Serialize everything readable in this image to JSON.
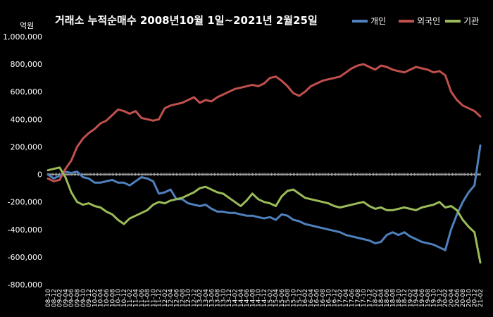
{
  "chart_data": {
    "type": "line",
    "title": "거래소 누적순매수 2008년10월 1일~2021년 2월25일",
    "ylabel": "억원",
    "ylim": [
      -800000,
      1000000
    ],
    "yticks": [
      "1,000,000",
      "800,000",
      "600,000",
      "400,000",
      "200,000",
      "0",
      "-200,000",
      "-400,000",
      "-600,000",
      "-800,000"
    ],
    "xticks": [
      "08-10",
      "08-12",
      "09-02",
      "09-04",
      "09-06",
      "09-08",
      "09-10",
      "09-12",
      "10-02",
      "10-04",
      "10-06",
      "10-08",
      "10-10",
      "10-12",
      "11-02",
      "11-04",
      "11-06",
      "11-08",
      "11-10",
      "11-12",
      "12-02",
      "12-04",
      "12-06",
      "12-08",
      "12-10",
      "12-12",
      "13-02",
      "13-04",
      "13-06",
      "13-08",
      "13-10",
      "13-12",
      "14-02",
      "14-04",
      "14-06",
      "14-08",
      "14-10",
      "14-12",
      "15-02",
      "15-04",
      "15-06",
      "15-08",
      "15-10",
      "15-12",
      "16-02",
      "16-04",
      "16-06",
      "16-08",
      "16-10",
      "16-12",
      "17-02",
      "17-04",
      "17-06",
      "17-08",
      "17-10",
      "17-12",
      "18-02",
      "18-04",
      "18-06",
      "18-08",
      "18-10",
      "18-12",
      "19-02",
      "19-04",
      "19-06",
      "19-08",
      "19-10",
      "19-12",
      "20-02",
      "20-04",
      "20-06",
      "20-08",
      "20-10",
      "20-12",
      "21-02"
    ],
    "legend_position": "top-right",
    "grid": false,
    "series": [
      {
        "name": "개인",
        "color": "#4f81bd",
        "values": [
          0,
          -30000,
          -10000,
          20000,
          10000,
          20000,
          -20000,
          -30000,
          -60000,
          -60000,
          -50000,
          -40000,
          -60000,
          -60000,
          -80000,
          -50000,
          -20000,
          -30000,
          -50000,
          -140000,
          -130000,
          -110000,
          -180000,
          -180000,
          -210000,
          -220000,
          -230000,
          -220000,
          -250000,
          -270000,
          -270000,
          -280000,
          -280000,
          -290000,
          -300000,
          -300000,
          -310000,
          -320000,
          -310000,
          -330000,
          -290000,
          -300000,
          -330000,
          -340000,
          -360000,
          -370000,
          -380000,
          -390000,
          -400000,
          -410000,
          -420000,
          -440000,
          -450000,
          -460000,
          -470000,
          -480000,
          -500000,
          -490000,
          -440000,
          -420000,
          -440000,
          -420000,
          -450000,
          -470000,
          -490000,
          -500000,
          -510000,
          -530000,
          -550000,
          -400000,
          -290000,
          -200000,
          -130000,
          -80000,
          210000
        ]
      },
      {
        "name": "외국인",
        "color": "#c0504d",
        "values": [
          -30000,
          -50000,
          -40000,
          40000,
          100000,
          200000,
          260000,
          300000,
          330000,
          370000,
          390000,
          430000,
          470000,
          460000,
          440000,
          460000,
          410000,
          400000,
          390000,
          400000,
          480000,
          500000,
          510000,
          520000,
          540000,
          560000,
          520000,
          540000,
          530000,
          560000,
          580000,
          600000,
          620000,
          630000,
          640000,
          650000,
          640000,
          660000,
          700000,
          710000,
          680000,
          640000,
          590000,
          570000,
          600000,
          640000,
          660000,
          680000,
          690000,
          700000,
          710000,
          740000,
          770000,
          790000,
          800000,
          780000,
          760000,
          790000,
          780000,
          760000,
          750000,
          740000,
          760000,
          780000,
          770000,
          760000,
          740000,
          750000,
          720000,
          600000,
          540000,
          500000,
          480000,
          460000,
          420000
        ]
      },
      {
        "name": "기관",
        "color": "#9bbb59",
        "values": [
          30000,
          40000,
          50000,
          -20000,
          -130000,
          -200000,
          -220000,
          -210000,
          -230000,
          -240000,
          -270000,
          -290000,
          -330000,
          -360000,
          -320000,
          -300000,
          -280000,
          -260000,
          -220000,
          -200000,
          -210000,
          -190000,
          -180000,
          -170000,
          -150000,
          -130000,
          -100000,
          -90000,
          -110000,
          -130000,
          -140000,
          -170000,
          -200000,
          -230000,
          -190000,
          -140000,
          -180000,
          -200000,
          -210000,
          -230000,
          -160000,
          -120000,
          -110000,
          -140000,
          -170000,
          -180000,
          -190000,
          -200000,
          -210000,
          -230000,
          -240000,
          -230000,
          -220000,
          -210000,
          -200000,
          -230000,
          -250000,
          -240000,
          -260000,
          -260000,
          -250000,
          -240000,
          -250000,
          -260000,
          -240000,
          -230000,
          -220000,
          -200000,
          -240000,
          -230000,
          -260000,
          -330000,
          -380000,
          -420000,
          -640000
        ]
      }
    ]
  }
}
